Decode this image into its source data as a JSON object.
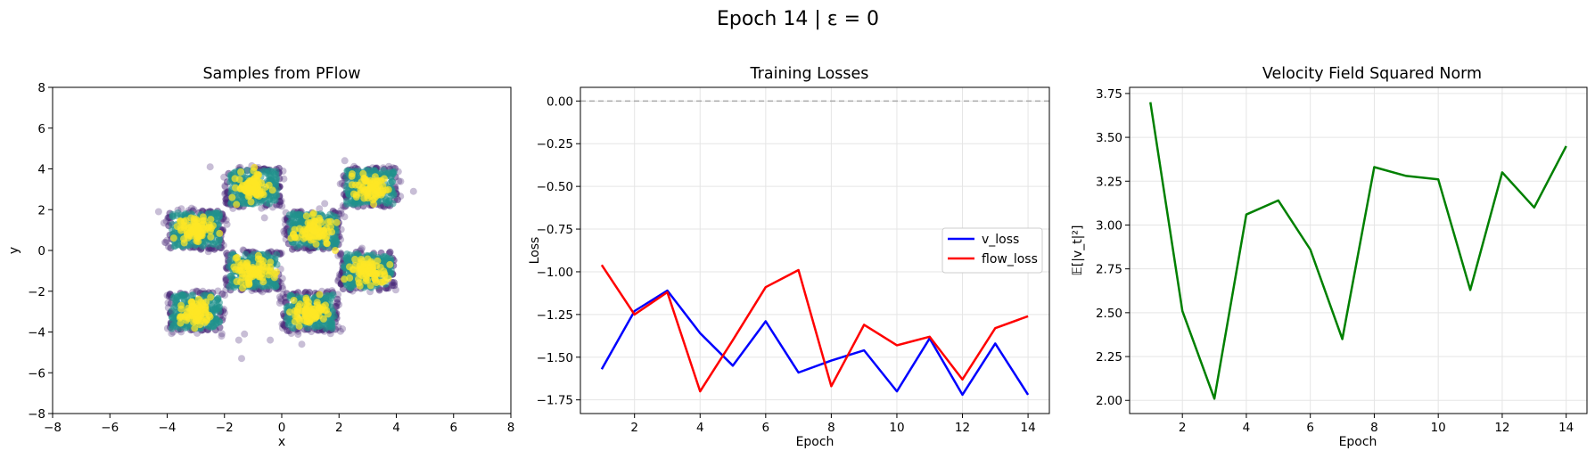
{
  "figure": {
    "title": "Epoch 14 | ε = 0"
  },
  "chart_data": [
    {
      "type": "scatter",
      "title": "Samples from PFlow",
      "xlabel": "x",
      "ylabel": "y",
      "xlim": [
        -8,
        8
      ],
      "ylim": [
        -8,
        8
      ],
      "xticks": [
        -8,
        -6,
        -4,
        -2,
        0,
        2,
        4,
        6,
        8
      ],
      "yticks": [
        -8,
        -6,
        -4,
        -2,
        0,
        2,
        4,
        6,
        8
      ],
      "grid": false,
      "colormap": "viridis",
      "clusters": [
        {
          "cx": -3.0,
          "cy": 1.0
        },
        {
          "cx": -1.0,
          "cy": 3.1
        },
        {
          "cx": 3.1,
          "cy": 3.1
        },
        {
          "cx": 1.1,
          "cy": 1.0
        },
        {
          "cx": -1.0,
          "cy": -1.0
        },
        {
          "cx": 3.0,
          "cy": -1.0
        },
        {
          "cx": -3.0,
          "cy": -3.0
        },
        {
          "cx": 1.0,
          "cy": -3.0
        }
      ],
      "cluster_half_width": 0.95,
      "outliers": [
        [
          -1.4,
          -5.3
        ],
        [
          -1.3,
          -4.1
        ],
        [
          -0.4,
          -4.4
        ],
        [
          -2.1,
          -4.2
        ],
        [
          0.7,
          -4.6
        ],
        [
          -2.5,
          4.1
        ],
        [
          2.2,
          4.4
        ],
        [
          -4.3,
          1.9
        ],
        [
          -0.6,
          1.6
        ],
        [
          4.6,
          2.9
        ],
        [
          1.5,
          2.3
        ],
        [
          -1.5,
          -4.4
        ]
      ],
      "colors": {
        "low": "#482878",
        "mid": "#21918c",
        "high": "#fde725"
      }
    },
    {
      "type": "line",
      "title": "Training Losses",
      "xlabel": "Epoch",
      "ylabel": "Loss",
      "xlim": [
        0.35,
        14.65
      ],
      "ylim": [
        -1.83,
        0.08
      ],
      "xticks": [
        2,
        4,
        6,
        8,
        10,
        12,
        14
      ],
      "yticks": [
        0.0,
        -0.25,
        -0.5,
        -0.75,
        -1.0,
        -1.25,
        -1.5,
        -1.75
      ],
      "ytick_labels": [
        "0.00",
        "−0.25",
        "−0.50",
        "−0.75",
        "−1.00",
        "−1.25",
        "−1.50",
        "−1.75"
      ],
      "grid": true,
      "reference_line": {
        "y": 0,
        "style": "dashed",
        "color": "#aaaaaa"
      },
      "legend": {
        "position": "center-right"
      },
      "x": [
        1,
        2,
        3,
        4,
        5,
        6,
        7,
        8,
        9,
        10,
        11,
        12,
        13,
        14
      ],
      "series": [
        {
          "name": "v_loss",
          "color": "#0000ff",
          "values": [
            -1.57,
            -1.23,
            -1.11,
            -1.36,
            -1.55,
            -1.29,
            -1.59,
            -1.52,
            -1.46,
            -1.7,
            -1.39,
            -1.72,
            -1.42,
            -1.72
          ]
        },
        {
          "name": "flow_loss",
          "color": "#ff0000",
          "values": [
            -0.96,
            -1.25,
            -1.12,
            -1.7,
            -1.4,
            -1.09,
            -0.99,
            -1.67,
            -1.31,
            -1.43,
            -1.38,
            -1.63,
            -1.33,
            -1.26
          ]
        }
      ]
    },
    {
      "type": "line",
      "title": "Velocity Field Squared Norm",
      "xlabel": "Epoch",
      "ylabel": "𝔼[|v_t|²]",
      "xlim": [
        0.35,
        14.65
      ],
      "ylim": [
        1.925,
        3.785
      ],
      "xticks": [
        2,
        4,
        6,
        8,
        10,
        12,
        14
      ],
      "yticks": [
        2.0,
        2.25,
        2.5,
        2.75,
        3.0,
        3.25,
        3.5,
        3.75
      ],
      "ytick_labels": [
        "2.00",
        "2.25",
        "2.50",
        "2.75",
        "3.00",
        "3.25",
        "3.50",
        "3.75"
      ],
      "grid": true,
      "x": [
        1,
        2,
        3,
        4,
        5,
        6,
        7,
        8,
        9,
        10,
        11,
        12,
        13,
        14
      ],
      "series": [
        {
          "color": "#008000",
          "values": [
            3.7,
            2.51,
            2.01,
            3.06,
            3.14,
            2.86,
            2.35,
            3.33,
            3.28,
            3.26,
            2.63,
            3.3,
            3.1,
            3.45
          ]
        }
      ]
    }
  ]
}
